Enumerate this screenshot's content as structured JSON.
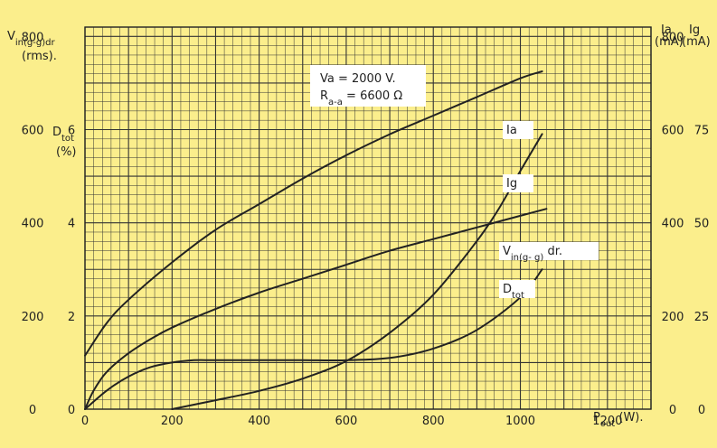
{
  "chart_data": {
    "type": "line",
    "xlabel_main": "P",
    "xlabel_sub": "out",
    "xlabel_unit": "(W).",
    "xlim": [
      0,
      1300
    ],
    "x_ticks": [
      0,
      200,
      400,
      600,
      800,
      1000,
      1200
    ],
    "x_tick_labels": [
      "0",
      "200",
      "400",
      "600",
      "800",
      "1000",
      "1200"
    ],
    "ylim": [
      0,
      820
    ],
    "axes": {
      "vin": {
        "label_main": "V",
        "label_sub": "in(g-g)dr",
        "label_unit": "(rms).",
        "ticks": [
          0,
          200,
          400,
          600,
          800
        ],
        "tick_labels": [
          "0",
          "200",
          "400",
          "600",
          "800"
        ]
      },
      "dtot": {
        "label_main": "D",
        "label_sub": "tot",
        "label_unit": "(%)",
        "ticks": [
          2,
          4,
          6
        ],
        "tick_labels": [
          "2",
          "4",
          "6"
        ],
        "zero_label": "0",
        "range": [
          0,
          8
        ]
      },
      "ia": {
        "label_main": "Ia",
        "label_unit": "(mA)",
        "ticks": [
          0,
          200,
          400,
          600,
          800
        ],
        "tick_labels": [
          "0",
          "200",
          "400",
          "600",
          "800"
        ]
      },
      "ig": {
        "label_main": "Ig",
        "label_unit": "(mA)",
        "ticks": [
          25,
          50,
          75
        ],
        "tick_labels": [
          "25",
          "50",
          "75"
        ],
        "zero_label": "0",
        "range": [
          0,
          100
        ]
      }
    },
    "annotation": {
      "line1_main": "Va",
      "line1_value": "= 2000 V.",
      "line2_main": "R",
      "line2_sub": "a-a",
      "line2_value": "= 6600 Ω"
    },
    "grid": true,
    "series": [
      {
        "name": "Ia",
        "axis": "ia",
        "label_main": "Ia",
        "label_sub": "",
        "label_tail": "",
        "x": [
          0,
          50,
          100,
          200,
          300,
          400,
          500,
          600,
          700,
          800,
          900,
          1000,
          1050
        ],
        "y": [
          115,
          185,
          235,
          315,
          385,
          440,
          495,
          545,
          590,
          630,
          670,
          710,
          725
        ]
      },
      {
        "name": "Ig",
        "axis": "ig",
        "label_main": "Ig",
        "label_sub": "",
        "label_tail": "",
        "x": [
          200,
          300,
          400,
          500,
          600,
          700,
          800,
          900,
          950,
          1000,
          1050
        ],
        "y": [
          0,
          2.4,
          4.9,
          8.2,
          12.9,
          20.5,
          30.7,
          45.1,
          53.7,
          63.9,
          73.8
        ]
      },
      {
        "name": "Vin(g-g)dr.",
        "axis": "vin",
        "label_main": "V",
        "label_sub": "in(g- g)",
        "label_tail": "dr.",
        "x": [
          0,
          20,
          50,
          100,
          150,
          200,
          300,
          400,
          500,
          600,
          700,
          800,
          900,
          1000,
          1060
        ],
        "y": [
          0,
          40,
          80,
          120,
          150,
          175,
          215,
          250,
          280,
          310,
          340,
          365,
          390,
          415,
          430
        ]
      },
      {
        "name": "Dtot",
        "axis": "dtot",
        "label_main": "D",
        "label_sub": "tot",
        "label_tail": "",
        "x": [
          0,
          50,
          100,
          150,
          200,
          250,
          300,
          400,
          500,
          600,
          700,
          800,
          900,
          1000,
          1050
        ],
        "y": [
          0,
          0.4,
          0.7,
          0.9,
          1.0,
          1.05,
          1.05,
          1.05,
          1.05,
          1.05,
          1.1,
          1.3,
          1.7,
          2.4,
          3.0
        ]
      }
    ]
  }
}
